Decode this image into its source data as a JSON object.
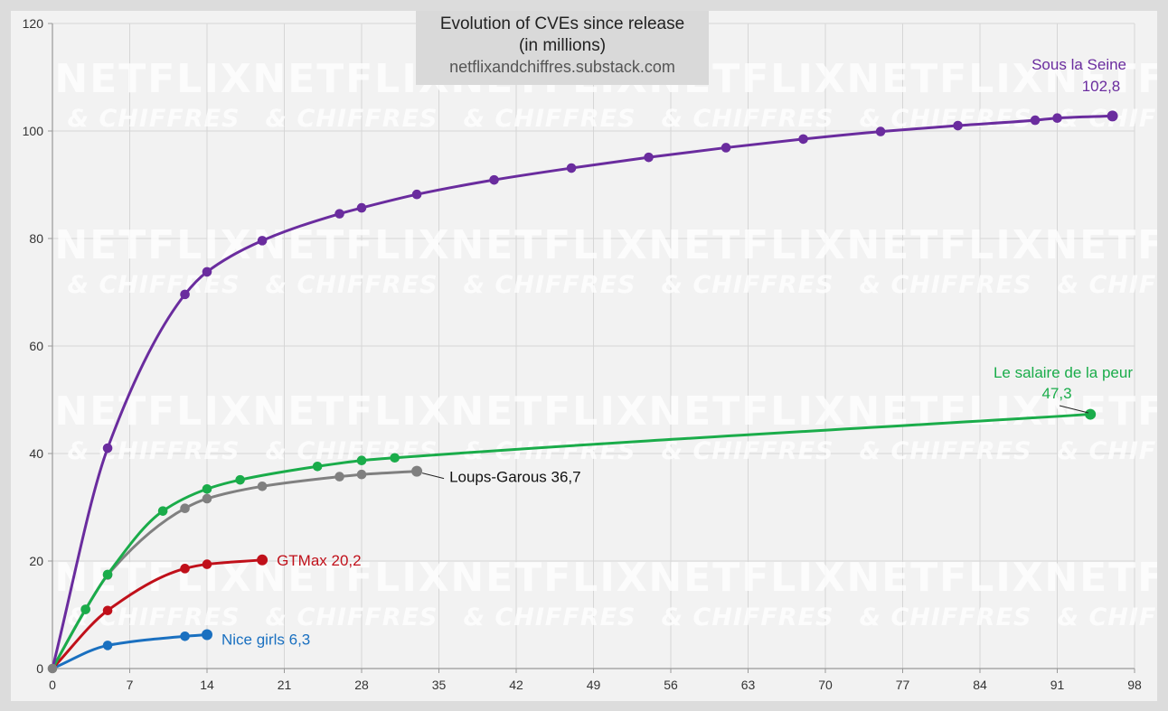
{
  "chart_data": {
    "type": "line",
    "title": "Evolution of CVEs since release",
    "subtitle": "(in millions)",
    "source": "netflixandchiffres.substack.com",
    "watermark": {
      "line1": "NETFLIX",
      "line2": "& CHIFFRES"
    },
    "xlabel": "",
    "ylabel": "",
    "xlim": [
      0,
      98
    ],
    "ylim": [
      0,
      120
    ],
    "x_ticks": [
      0,
      7,
      14,
      21,
      28,
      35,
      42,
      49,
      56,
      63,
      70,
      77,
      84,
      91,
      98
    ],
    "y_ticks": [
      0,
      20,
      40,
      60,
      80,
      100,
      120
    ],
    "grid": true,
    "legend": "none",
    "series": [
      {
        "name": "Sous la Seine",
        "color": "#6a2c9e",
        "label": "Sous la Seine",
        "value_label": "102,8",
        "x": [
          0,
          5,
          12,
          14,
          19,
          26,
          28,
          33,
          40,
          47,
          54,
          61,
          68,
          75,
          82,
          89,
          91,
          96
        ],
        "y": [
          0,
          41,
          69.6,
          73.8,
          79.6,
          84.6,
          85.7,
          88.2,
          90.9,
          93.1,
          95.1,
          96.9,
          98.5,
          99.9,
          101,
          102,
          102.4,
          102.8
        ]
      },
      {
        "name": "Le salaire de la peur",
        "color": "#1aac4a",
        "label": "Le salaire de la peur",
        "value_label": "47,3",
        "x": [
          0,
          3,
          5,
          10,
          14,
          17,
          24,
          28,
          31,
          94
        ],
        "y": [
          0,
          11,
          17.5,
          29.3,
          33.4,
          35.1,
          37.6,
          38.7,
          39.2,
          47.3
        ]
      },
      {
        "name": "Loups-Garous",
        "color": "#808080",
        "label": "Loups-Garous 36,7",
        "x": [
          0,
          3,
          5,
          12,
          14,
          19,
          26,
          28,
          33
        ],
        "y": [
          0,
          11,
          17.4,
          29.8,
          31.6,
          33.9,
          35.7,
          36.1,
          36.7
        ]
      },
      {
        "name": "GTMax",
        "color": "#c0101a",
        "label": "GTMax 20,2",
        "x": [
          0,
          5,
          12,
          14,
          19
        ],
        "y": [
          0,
          10.8,
          18.6,
          19.4,
          20.2
        ]
      },
      {
        "name": "Nice girls",
        "color": "#1a70c0",
        "label": "Nice girls 6,3",
        "x": [
          0,
          5,
          12,
          14
        ],
        "y": [
          0,
          4.3,
          6.0,
          6.3
        ]
      }
    ]
  }
}
